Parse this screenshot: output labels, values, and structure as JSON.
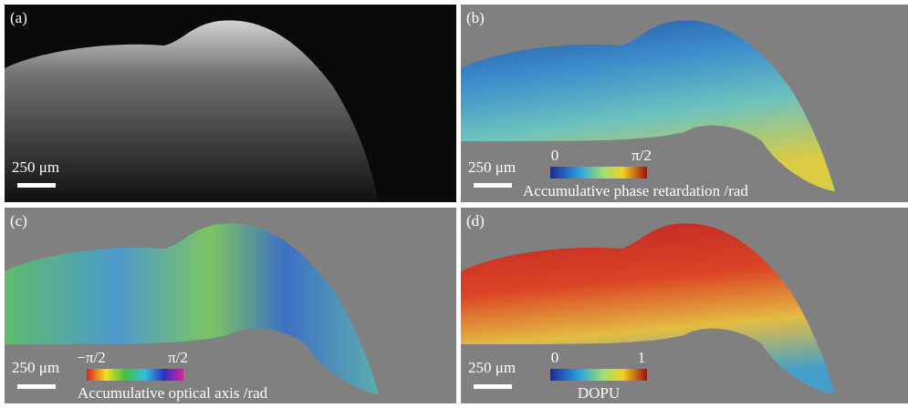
{
  "panels": [
    {
      "label": "(a)",
      "scale_bar": "250 μm"
    },
    {
      "label": "(b)",
      "scale_bar": "250 μm",
      "colorbar": {
        "min": "0",
        "max": "π/2",
        "title": "Accumulative phase retardation /rad"
      }
    },
    {
      "label": "(c)",
      "scale_bar": "250 μm",
      "colorbar": {
        "min": "−π/2",
        "max": "π/2",
        "title": "Accumulative optical axis /rad"
      }
    },
    {
      "label": "(d)",
      "scale_bar": "250 μm",
      "colorbar": {
        "min": "0",
        "max": "1",
        "title": "DOPU"
      }
    }
  ]
}
